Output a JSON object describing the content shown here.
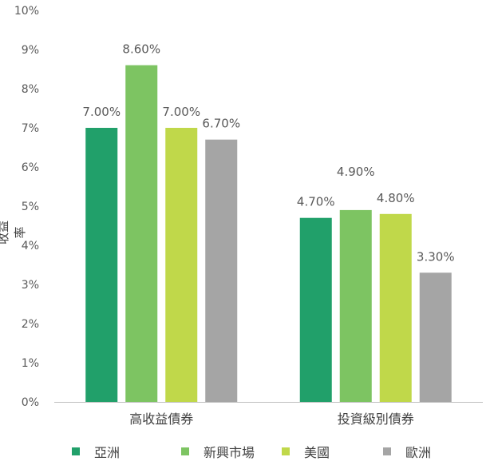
{
  "chart_data": {
    "type": "bar",
    "title": "",
    "xlabel": "",
    "ylabel": "收益率",
    "ylim": [
      0,
      10
    ],
    "yticks": [
      "0%",
      "1%",
      "2%",
      "3%",
      "4%",
      "5%",
      "6%",
      "7%",
      "8%",
      "9%",
      "10%"
    ],
    "categories": [
      "高收益債券",
      "投資級別債券"
    ],
    "series": [
      {
        "name": "亞洲",
        "color": "#21A06A",
        "values": [
          7.0,
          4.7
        ],
        "labels": [
          "7.00%",
          "4.70%"
        ]
      },
      {
        "name": "新興市場",
        "color": "#7DC462",
        "values": [
          8.6,
          4.9
        ],
        "labels": [
          "8.60%",
          "4.90%"
        ]
      },
      {
        "name": "美國",
        "color": "#C0D84A",
        "values": [
          7.0,
          4.8
        ],
        "labels": [
          "7.00%",
          "4.80%"
        ]
      },
      {
        "name": "歐洲",
        "color": "#A5A5A5",
        "values": [
          6.7,
          3.3
        ],
        "labels": [
          "6.70%",
          "3.30%"
        ]
      }
    ],
    "gridlines": false,
    "legend_position": "bottom"
  }
}
